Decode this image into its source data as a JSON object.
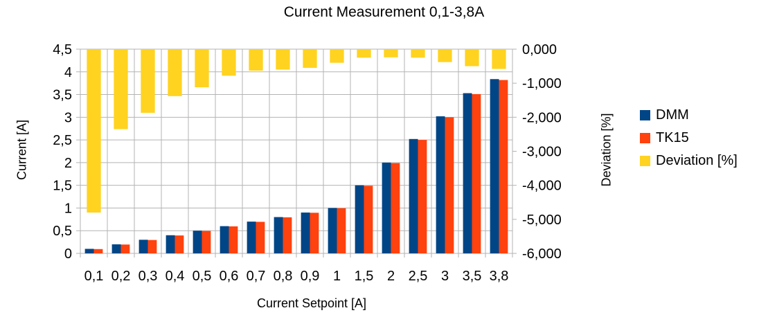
{
  "chart_data": {
    "type": "bar",
    "title": "Current Measurement 0,1-3,8A",
    "xlabel": "Current Setpoint [A]",
    "ylabel": "Current [A]",
    "y2label": "Deviation [%]",
    "categories": [
      "0,1",
      "0,2",
      "0,3",
      "0,4",
      "0,5",
      "0,6",
      "0,7",
      "0,8",
      "0,9",
      "1",
      "1,5",
      "2",
      "2,5",
      "3",
      "3,5",
      "3,8"
    ],
    "ylim": [
      0,
      4.5
    ],
    "y2lim": [
      -6,
      0
    ],
    "y_ticks": [
      "0",
      "0,5",
      "1",
      "1,5",
      "2",
      "2,5",
      "3",
      "3,5",
      "4",
      "4,5"
    ],
    "y2_ticks": [
      "-6,000",
      "-5,000",
      "-4,000",
      "-3,000",
      "-2,000",
      "-1,000",
      "0,000"
    ],
    "series": [
      {
        "name": "DMM",
        "axis": "left",
        "color": "#004586",
        "values": [
          0.1,
          0.2,
          0.3,
          0.4,
          0.5,
          0.6,
          0.7,
          0.8,
          0.9,
          1.0,
          1.5,
          2.0,
          2.52,
          3.02,
          3.53,
          3.84
        ]
      },
      {
        "name": "TK15",
        "axis": "left",
        "color": "#ff420e",
        "values": [
          0.095,
          0.195,
          0.295,
          0.395,
          0.495,
          0.595,
          0.695,
          0.795,
          0.895,
          0.995,
          1.49,
          1.99,
          2.5,
          3.0,
          3.51,
          3.82
        ]
      },
      {
        "name": "Deviation [%]",
        "axis": "right",
        "color": "#ffd320",
        "values": [
          -4.8,
          -2.35,
          -1.87,
          -1.38,
          -1.12,
          -0.78,
          -0.63,
          -0.6,
          -0.55,
          -0.4,
          -0.25,
          -0.24,
          -0.25,
          -0.38,
          -0.5,
          -0.58
        ]
      }
    ],
    "grid": true,
    "legend_position": "right"
  }
}
